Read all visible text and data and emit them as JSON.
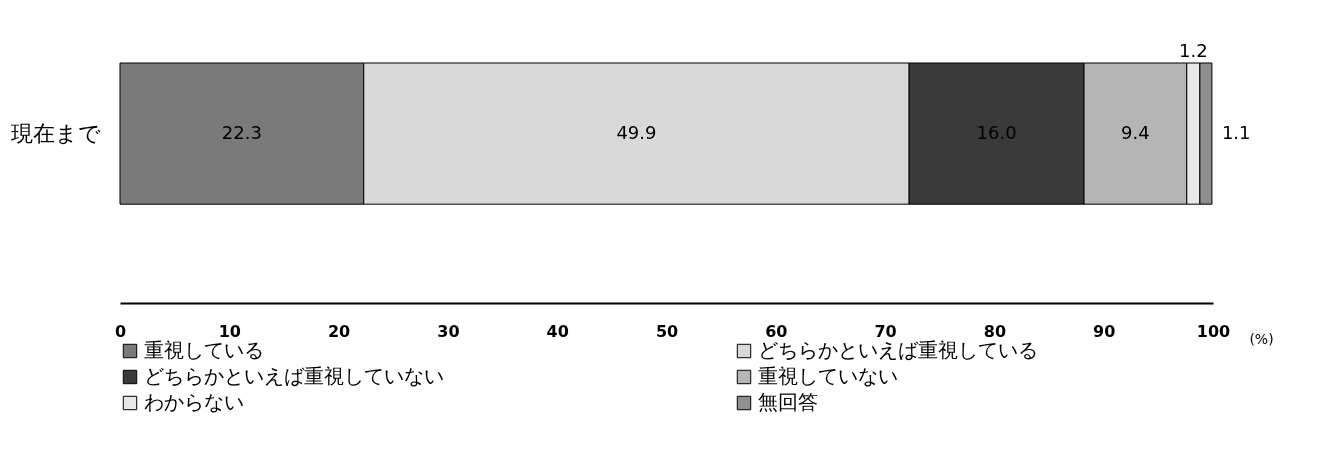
{
  "chart_data": {
    "type": "bar",
    "orientation": "horizontal",
    "stacked": true,
    "categories": [
      "現在まで"
    ],
    "xlabel": "(%)",
    "xlim": [
      0,
      100
    ],
    "xticks": [
      0,
      10,
      20,
      30,
      40,
      50,
      60,
      70,
      80,
      90,
      100
    ],
    "legend": "bottom",
    "grid": false,
    "series": [
      {
        "name": "重視している",
        "color": "#7a7a7a",
        "values": [
          22.3
        ],
        "value_labels": [
          "22.3"
        ]
      },
      {
        "name": "どちらかといえば重視している",
        "color": "#d9d9d9",
        "values": [
          49.9
        ],
        "value_labels": [
          "49.9"
        ]
      },
      {
        "name": "どちらかといえば重視していない",
        "color": "#3a3a3a",
        "values": [
          16.0
        ],
        "value_labels": [
          "16.0"
        ]
      },
      {
        "name": "重視していない",
        "color": "#b5b5b5",
        "values": [
          9.4
        ],
        "value_labels": [
          "9.4"
        ]
      },
      {
        "name": "わからない",
        "color": "#e8e8e8",
        "values": [
          1.2
        ],
        "value_labels": [
          "1.2"
        ]
      },
      {
        "name": "無回答",
        "color": "#8f8f8f",
        "values": [
          1.1
        ],
        "value_labels": [
          "1.1"
        ]
      }
    ]
  }
}
